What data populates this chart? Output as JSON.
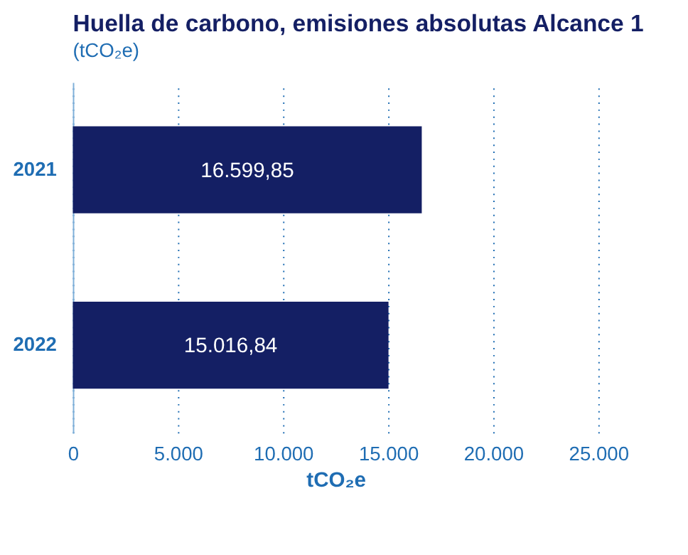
{
  "chart_data": {
    "type": "bar",
    "orientation": "horizontal",
    "title": "Huella de carbono, emisiones absolutas Alcance 1",
    "subtitle": "(tCO₂e)",
    "xlabel": "tCO₂e",
    "categories": [
      "2021",
      "2022"
    ],
    "values": [
      16599.85,
      15016.84
    ],
    "value_labels": [
      "16.599,85",
      "15.016,84"
    ],
    "color": "#141f64",
    "xlim": [
      0,
      25000
    ],
    "xticks": [
      0,
      {
        "value": 5000,
        "label": "5.000"
      },
      {
        "value": 10000,
        "label": "10.000"
      },
      {
        "value": 15000,
        "label": "15.000"
      },
      {
        "value": 20000,
        "label": "20.000"
      },
      {
        "value": 25000,
        "label": "25.000"
      }
    ],
    "grid": "x"
  }
}
